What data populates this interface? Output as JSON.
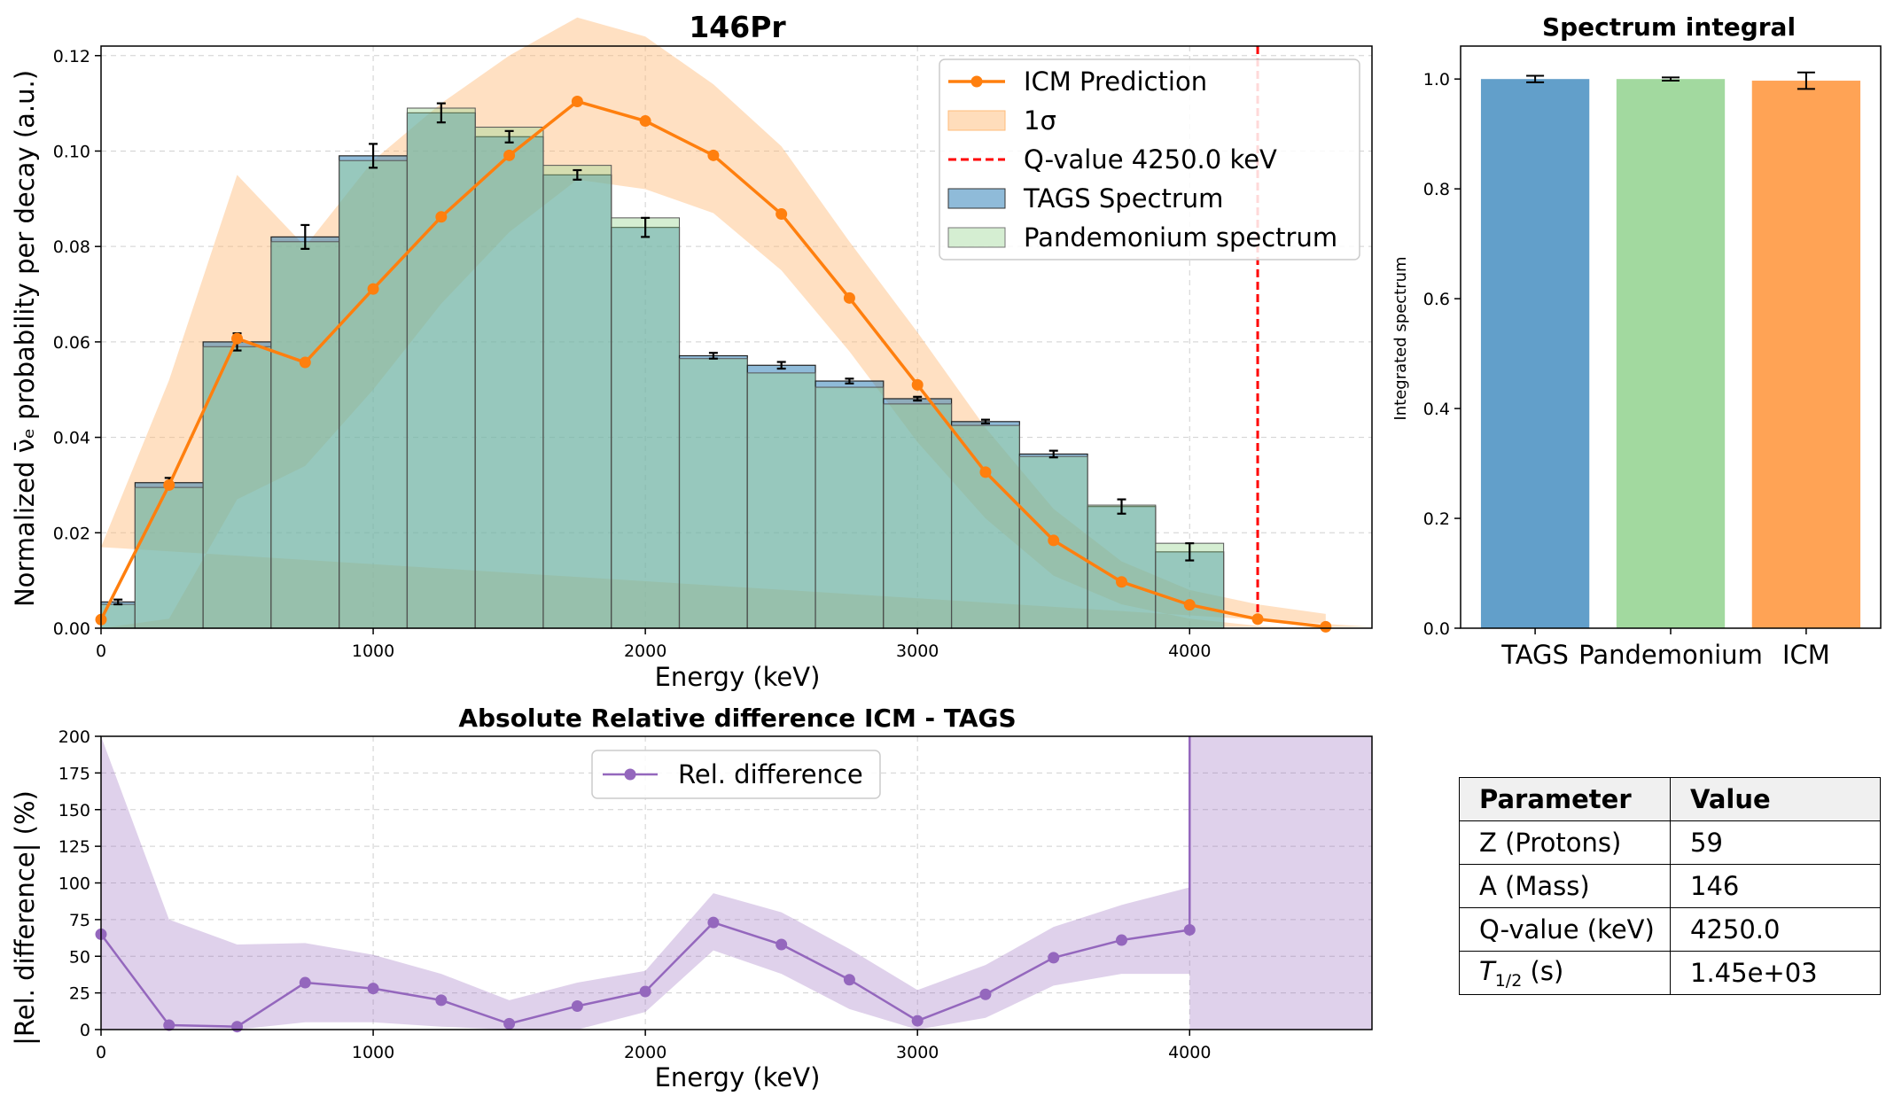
{
  "main_plot": {
    "title": "146Pr",
    "xlabel": "Energy (keV)",
    "ylabel": "Normalized ν̄ₑ probability per decay (a.u.)",
    "legend": {
      "icm": "ICM Prediction",
      "sigma": "1σ",
      "qvalue": "Q-value 4250.0 keV",
      "tags": "TAGS Spectrum",
      "pandemonium": "Pandemonium spectrum"
    }
  },
  "bar_plot": {
    "title": "Spectrum integral",
    "ylabel": "Integrated spectrum"
  },
  "diff_plot": {
    "title": "Absolute Relative difference ICM - TAGS",
    "xlabel": "Energy (keV)",
    "ylabel": "|Rel. difference| (%)",
    "legend": "Rel. difference"
  },
  "param_table": {
    "header": [
      "Parameter",
      "Value"
    ],
    "rows": [
      {
        "name": "Z (Protons)",
        "value": "59"
      },
      {
        "name": "A (Mass)",
        "value": "146"
      },
      {
        "name": "Q-value (keV)",
        "value": "4250.0"
      },
      {
        "name_main": "T",
        "name_sub": "1/2",
        "name_rest": " (s)",
        "value": "1.45e+03"
      }
    ]
  },
  "colors": {
    "tags": "#1f77b4",
    "pandemonium": "#a1d99b",
    "icm": "#ff7f0e",
    "sigma": "#ffbb78",
    "qvalue": "#ff0000",
    "diff": "#9467bd",
    "bar_tags": "#629fca",
    "bar_pand": "#a2d99f",
    "bar_icm": "#ffa355"
  },
  "chart_data": [
    {
      "type": "bar",
      "name": "main",
      "xlim": [
        0,
        4670
      ],
      "ylim": [
        0,
        0.122
      ],
      "xticks": [
        0,
        1000,
        2000,
        3000,
        4000
      ],
      "yticks": [
        0.0,
        0.02,
        0.04,
        0.06,
        0.08,
        0.1,
        0.12
      ],
      "grid": true,
      "legend_position": "top-right",
      "bin_edges": [
        0,
        125,
        375,
        625,
        875,
        1125,
        1375,
        1625,
        1875,
        2125,
        2375,
        2625,
        2875,
        3125,
        3375,
        3625,
        3875,
        4125
      ],
      "tags": {
        "values": [
          0.0055,
          0.0305,
          0.06,
          0.082,
          0.099,
          0.108,
          0.103,
          0.095,
          0.084,
          0.0571,
          0.0551,
          0.0518,
          0.0481,
          0.0433,
          0.0365,
          0.0255,
          0.016
        ],
        "errors": [
          0.0005,
          0.001,
          0.0018,
          0.0025,
          0.0025,
          0.002,
          0.0012,
          0.001,
          0.002,
          0.0006,
          0.0007,
          0.0005,
          0.0004,
          0.0004,
          0.0007,
          0.0015,
          0.0018
        ]
      },
      "pandemonium": {
        "values": [
          0.005,
          0.0295,
          0.059,
          0.081,
          0.098,
          0.109,
          0.105,
          0.097,
          0.086,
          0.0565,
          0.0535,
          0.0505,
          0.047,
          0.0425,
          0.036,
          0.0258,
          0.0178
        ]
      },
      "icm": {
        "x": [
          0,
          250,
          500,
          750,
          1000,
          1250,
          1500,
          1750,
          2000,
          2250,
          2500,
          2750,
          3000,
          3250,
          3500,
          3750,
          4000,
          4250,
          4500
        ],
        "values": [
          0.0018,
          0.03,
          0.0607,
          0.0557,
          0.0711,
          0.0862,
          0.0991,
          0.1104,
          0.1063,
          0.0991,
          0.0868,
          0.0692,
          0.051,
          0.0327,
          0.0184,
          0.0097,
          0.0049,
          0.0019,
          0.0003
        ],
        "lower": [
          0,
          0.002,
          0.027,
          0.034,
          0.05,
          0.068,
          0.083,
          0.094,
          0.092,
          0.087,
          0.075,
          0.058,
          0.039,
          0.023,
          0.011,
          0.005,
          0.002,
          0.0005,
          0
        ],
        "upper": [
          0.017,
          0.052,
          0.095,
          0.08,
          0.098,
          0.11,
          0.12,
          0.128,
          0.124,
          0.114,
          0.101,
          0.081,
          0.062,
          0.042,
          0.025,
          0.014,
          0.008,
          0.005,
          0.003
        ]
      },
      "qvalue": 4250.0
    },
    {
      "type": "bar",
      "name": "integral",
      "categories": [
        "TAGS",
        "Pandemonium",
        "ICM"
      ],
      "values": [
        1.0,
        1.0,
        0.997
      ],
      "errors": [
        0.006,
        0.003,
        0.015
      ],
      "ylim": [
        0,
        1.06
      ],
      "yticks": [
        0.0,
        0.2,
        0.4,
        0.6,
        0.8,
        1.0
      ]
    },
    {
      "type": "line",
      "name": "relative-difference",
      "xlim": [
        0,
        4670
      ],
      "ylim": [
        0,
        200
      ],
      "xticks": [
        0,
        1000,
        2000,
        3000,
        4000
      ],
      "yticks": [
        0,
        25,
        50,
        75,
        100,
        125,
        150,
        175,
        200
      ],
      "grid": true,
      "legend_position": "top-center",
      "x": [
        0,
        250,
        500,
        750,
        1000,
        1250,
        1500,
        1750,
        2000,
        2250,
        2500,
        2750,
        3000,
        3250,
        3500,
        3750,
        4000
      ],
      "values": [
        65,
        3,
        2,
        32,
        28,
        20,
        4,
        16,
        26,
        73,
        58,
        34,
        6,
        24,
        49,
        61,
        68
      ],
      "band_lower": [
        0,
        0,
        0,
        5,
        5,
        2,
        0,
        0,
        12,
        54,
        38,
        14,
        0,
        8,
        30,
        38,
        38
      ],
      "band_upper": [
        200,
        75,
        58,
        59,
        51,
        38,
        20,
        32,
        40,
        93,
        80,
        55,
        27,
        44,
        70,
        85,
        97
      ],
      "band_after_4000": [
        0,
        200
      ]
    }
  ]
}
